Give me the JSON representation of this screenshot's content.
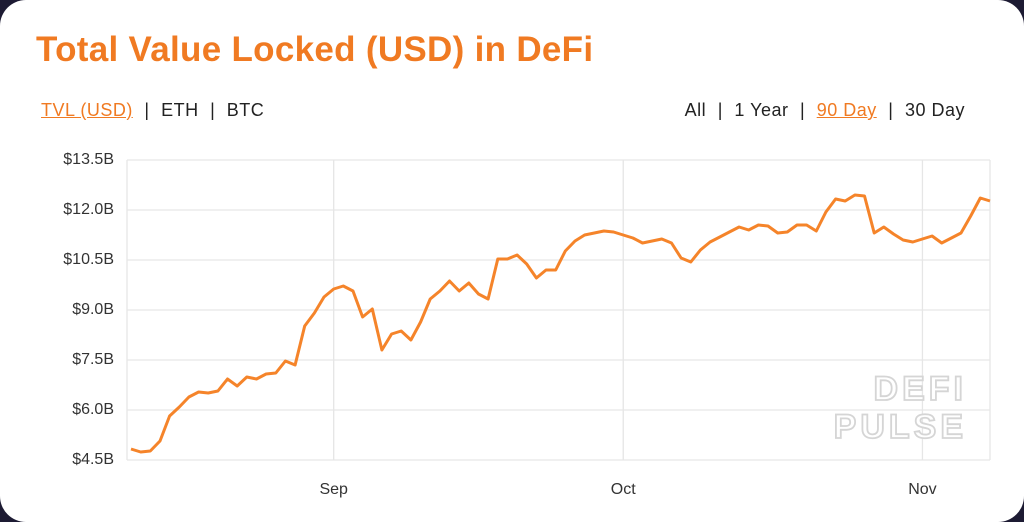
{
  "chart_data": {
    "type": "line",
    "title": "Total Value Locked (USD) in DeFi",
    "categories": [
      null,
      null,
      null,
      null,
      null,
      null,
      null,
      null,
      null,
      null,
      null,
      null,
      null,
      null,
      null,
      null,
      null,
      null,
      null,
      null,
      null,
      "Sep",
      null,
      null,
      null,
      null,
      null,
      null,
      null,
      null,
      null,
      null,
      null,
      null,
      null,
      null,
      null,
      null,
      null,
      null,
      null,
      null,
      null,
      null,
      null,
      null,
      null,
      null,
      null,
      null,
      null,
      "Oct",
      null,
      null,
      null,
      null,
      null,
      null,
      null,
      null,
      null,
      null,
      null,
      null,
      null,
      null,
      null,
      null,
      null,
      null,
      null,
      null,
      null,
      null,
      null,
      null,
      null,
      null,
      null,
      null,
      null,
      null,
      "Nov",
      null,
      null,
      null,
      null,
      null,
      null,
      null
    ],
    "values": [
      4.83,
      4.74,
      4.77,
      5.07,
      5.82,
      6.09,
      6.39,
      6.54,
      6.51,
      6.57,
      6.93,
      6.72,
      6.99,
      6.93,
      7.08,
      7.11,
      7.47,
      7.35,
      8.52,
      8.91,
      9.39,
      9.63,
      9.72,
      9.57,
      8.79,
      9.03,
      7.8,
      8.28,
      8.37,
      8.1,
      8.64,
      9.33,
      9.57,
      9.87,
      9.57,
      9.81,
      9.48,
      9.33,
      10.53,
      10.53,
      10.65,
      10.38,
      9.96,
      10.2,
      10.2,
      10.77,
      11.07,
      11.25,
      11.31,
      11.37,
      11.34,
      11.25,
      11.16,
      11.01,
      11.07,
      11.13,
      11.01,
      10.56,
      10.44,
      10.8,
      11.04,
      11.19,
      11.34,
      11.49,
      11.4,
      11.55,
      11.52,
      11.31,
      11.34,
      11.55,
      11.55,
      11.37,
      11.94,
      12.33,
      12.27,
      12.45,
      12.42,
      11.31,
      11.49,
      11.28,
      11.1,
      11.04,
      11.13,
      11.22,
      11.01,
      11.16,
      11.31,
      11.82,
      12.36,
      12.27
    ],
    "color": "#f5842a",
    "ylim": [
      4.5,
      13.5
    ],
    "yticks": [
      {
        "value": 4.5,
        "label": "$4.5B"
      },
      {
        "value": 6,
        "label": "$6.0B"
      },
      {
        "value": 7.5,
        "label": "$7.5B"
      },
      {
        "value": 9,
        "label": "$9.0B"
      },
      {
        "value": 10.5,
        "label": "$10.5B"
      },
      {
        "value": 12,
        "label": "$12.0B"
      },
      {
        "value": 13.5,
        "label": "$13.5B"
      }
    ],
    "grid": true
  },
  "metric_tabs": [
    "TVL (USD)",
    "ETH",
    "BTC"
  ],
  "range_tabs": [
    "All",
    "1 Year",
    "90 Day",
    "30 Day"
  ],
  "separator": "|",
  "watermark": [
    "DEFI",
    "PULSE"
  ]
}
